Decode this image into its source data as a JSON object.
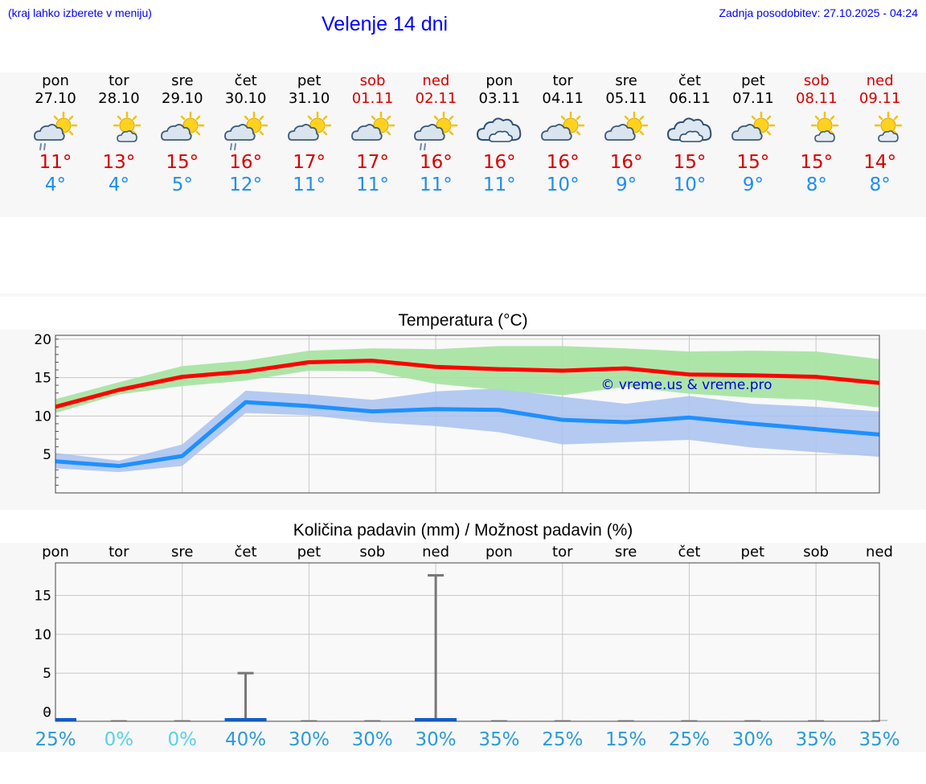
{
  "header": {
    "menu_hint": "(kraj lahko izberete v meniju)",
    "title": "Velenje 14 dni",
    "updated": "Zadnja posodobitev: 27.10.2025 - 04:24"
  },
  "colors": {
    "accent": "#0000ff",
    "max_temp": "#d40000",
    "min_temp": "#1f8ef0",
    "max_band": "#a9e4a4",
    "min_band": "#a9c2f0",
    "max_line": "#ff0000",
    "min_line": "#1e90ff",
    "rain_bar": "#0b5ed7",
    "pct_text": "#2a9bd8",
    "pct_zero": "#5bd0e8"
  },
  "days": [
    {
      "name": "pon",
      "date": "27.10",
      "weekend": false,
      "icon": "sun-cloud-rain-icon",
      "max": "11°",
      "min": "4°"
    },
    {
      "name": "tor",
      "date": "28.10",
      "weekend": false,
      "icon": "sun-cloud-icon",
      "max": "13°",
      "min": "4°"
    },
    {
      "name": "sre",
      "date": "29.10",
      "weekend": false,
      "icon": "sun-cloud-icon",
      "max": "15°",
      "min": "5°"
    },
    {
      "name": "čet",
      "date": "30.10",
      "weekend": false,
      "icon": "sun-cloud-rain-icon",
      "max": "16°",
      "min": "12°"
    },
    {
      "name": "pet",
      "date": "31.10",
      "weekend": false,
      "icon": "sun-cloud-icon",
      "max": "17°",
      "min": "11°"
    },
    {
      "name": "sob",
      "date": "01.11",
      "weekend": true,
      "icon": "sun-cloud-icon",
      "max": "17°",
      "min": "11°"
    },
    {
      "name": "ned",
      "date": "02.11",
      "weekend": true,
      "icon": "sun-cloud-rain-icon",
      "max": "16°",
      "min": "11°"
    },
    {
      "name": "pon",
      "date": "03.11",
      "weekend": false,
      "icon": "cloudy-icon",
      "max": "16°",
      "min": "11°"
    },
    {
      "name": "tor",
      "date": "04.11",
      "weekend": false,
      "icon": "sun-cloud-icon",
      "max": "16°",
      "min": "10°"
    },
    {
      "name": "sre",
      "date": "05.11",
      "weekend": false,
      "icon": "sun-cloud-icon",
      "max": "16°",
      "min": "9°"
    },
    {
      "name": "čet",
      "date": "06.11",
      "weekend": false,
      "icon": "cloudy-icon",
      "max": "15°",
      "min": "10°"
    },
    {
      "name": "pet",
      "date": "07.11",
      "weekend": false,
      "icon": "sun-cloud-icon",
      "max": "15°",
      "min": "9°"
    },
    {
      "name": "sob",
      "date": "08.11",
      "weekend": true,
      "icon": "sun-cloud-icon",
      "max": "15°",
      "min": "8°"
    },
    {
      "name": "ned",
      "date": "09.11",
      "weekend": true,
      "icon": "sun-cloud-icon",
      "max": "14°",
      "min": "8°"
    }
  ],
  "chart_data": [
    {
      "type": "line",
      "title": "Temperatura (°C)",
      "watermark": "© vreme.us & vreme.pro",
      "ylim": [
        0,
        20.5
      ],
      "yticks": [
        5,
        10,
        15,
        20
      ],
      "xlim": [
        0,
        13
      ],
      "series": [
        {
          "name": "max",
          "values": [
            11.2,
            13.4,
            15.1,
            15.8,
            17.0,
            17.2,
            16.4,
            16.1,
            15.9,
            16.2,
            15.4,
            15.3,
            15.1,
            14.3
          ],
          "upper": [
            12.2,
            14.4,
            16.5,
            17.2,
            18.5,
            18.8,
            18.7,
            19.1,
            19.1,
            18.8,
            18.4,
            18.5,
            18.4,
            17.4
          ],
          "lower": [
            10.4,
            12.8,
            13.9,
            14.6,
            15.9,
            15.8,
            14.2,
            13.4,
            12.7,
            13.8,
            12.9,
            12.4,
            12.1,
            11.1
          ]
        },
        {
          "name": "min",
          "values": [
            4.1,
            3.5,
            4.8,
            11.8,
            11.3,
            10.6,
            10.9,
            10.8,
            9.5,
            9.2,
            9.8,
            9.0,
            8.3,
            7.6
          ],
          "upper": [
            5.2,
            4.2,
            6.3,
            13.3,
            12.8,
            12.1,
            13.2,
            13.6,
            12.5,
            11.6,
            12.6,
            11.6,
            11.2,
            10.6
          ],
          "lower": [
            3.2,
            2.7,
            3.5,
            10.4,
            10.1,
            9.2,
            8.7,
            7.9,
            6.3,
            6.6,
            6.9,
            5.9,
            5.3,
            4.7
          ]
        }
      ]
    },
    {
      "type": "bar",
      "title": "Količina padavin (mm) / Možnost padavin (%)",
      "categories": [
        "pon",
        "tor",
        "sre",
        "čet",
        "pet",
        "sob",
        "ned",
        "pon",
        "tor",
        "sre",
        "čet",
        "pet",
        "sob",
        "ned"
      ],
      "values": [
        0.5,
        0,
        0,
        0.5,
        0,
        0,
        0.5,
        0,
        0,
        0,
        0,
        0,
        0,
        0
      ],
      "upper": [
        0.5,
        0,
        0,
        5.0,
        0,
        0,
        17.6,
        0,
        0,
        0,
        0,
        0,
        0,
        0
      ],
      "probability": [
        "25%",
        "0%",
        "0%",
        "40%",
        "30%",
        "30%",
        "30%",
        "35%",
        "25%",
        "15%",
        "25%",
        "30%",
        "35%",
        "35%"
      ],
      "ylim": [
        -1.2,
        19.2
      ],
      "yticks": [
        0,
        5,
        10,
        15
      ]
    }
  ]
}
